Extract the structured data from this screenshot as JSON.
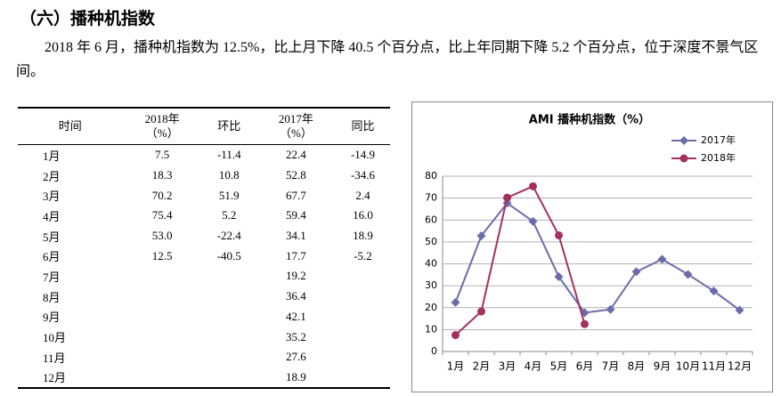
{
  "heading": "（六）播种机指数",
  "paragraph": "2018 年 6 月，播种机指数为 12.5%，比上月下降 40.5 个百分点，比上年同期下降 5.2 个百分点，位于深度不景气区间。",
  "table": {
    "header": [
      "时间",
      "2018年\n（%）",
      "环比",
      "2017年\n（%）",
      "同比"
    ],
    "rows": [
      [
        "1月",
        "7.5",
        "-11.4",
        "22.4",
        "-14.9"
      ],
      [
        "2月",
        "18.3",
        "10.8",
        "52.8",
        "-34.6"
      ],
      [
        "3月",
        "70.2",
        "51.9",
        "67.7",
        "2.4"
      ],
      [
        "4月",
        "75.4",
        "5.2",
        "59.4",
        "16.0"
      ],
      [
        "5月",
        "53.0",
        "-22.4",
        "34.1",
        "18.9"
      ],
      [
        "6月",
        "12.5",
        "-40.5",
        "17.7",
        "-5.2"
      ],
      [
        "7月",
        null,
        null,
        "19.2",
        null
      ],
      [
        "8月",
        null,
        null,
        "36.4",
        null
      ],
      [
        "9月",
        null,
        null,
        "42.1",
        null
      ],
      [
        "10月",
        null,
        null,
        "35.2",
        null
      ],
      [
        "11月",
        null,
        null,
        "27.6",
        null
      ],
      [
        "12月",
        null,
        null,
        "18.9",
        null
      ]
    ]
  },
  "chart_data": {
    "type": "line",
    "title": "AMI 播种机指数（%）",
    "categories": [
      "1月",
      "2月",
      "3月",
      "4月",
      "5月",
      "6月",
      "7月",
      "8月",
      "9月",
      "10月",
      "11月",
      "12月"
    ],
    "series": [
      {
        "name": "2017年",
        "color": "#6b6baa",
        "marker": "diamond",
        "values": [
          22.4,
          52.8,
          67.7,
          59.4,
          34.1,
          17.7,
          19.2,
          36.4,
          42.1,
          35.2,
          27.6,
          18.9
        ]
      },
      {
        "name": "2018年",
        "color": "#a3305f",
        "marker": "circle",
        "values": [
          7.5,
          18.3,
          70.2,
          75.4,
          53.0,
          12.5,
          null,
          null,
          null,
          null,
          null,
          null
        ]
      }
    ],
    "ylim": [
      0,
      80
    ],
    "yticks": [
      0,
      10,
      20,
      30,
      40,
      50,
      60,
      70,
      80
    ],
    "grid": true,
    "legend": "top-right"
  }
}
